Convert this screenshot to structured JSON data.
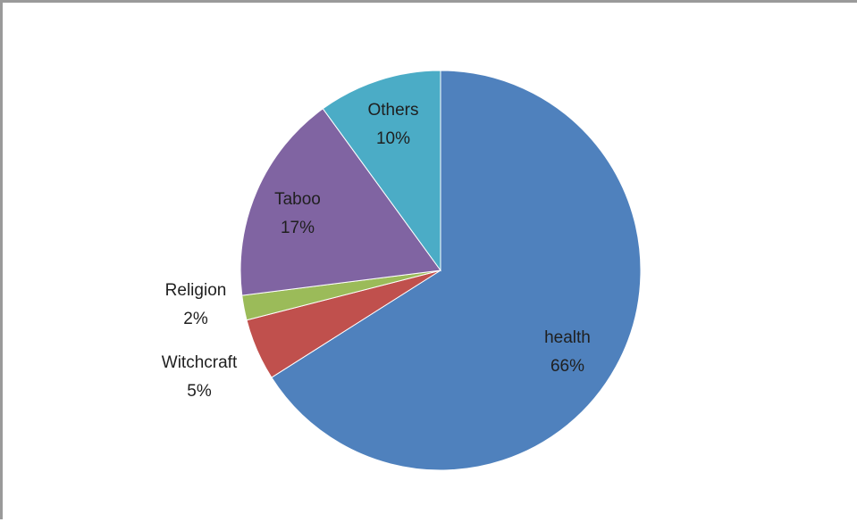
{
  "chart_data": {
    "type": "pie",
    "title": "",
    "slices": [
      {
        "label": "health",
        "value": 66,
        "percent_label": "66%",
        "color": "#4f81bd",
        "text_color": "#1f1f1f",
        "label_position": "inside"
      },
      {
        "label": "Witchcraft",
        "value": 5,
        "percent_label": "5%",
        "color": "#c0504d",
        "text_color": "#1f1f1f",
        "label_position": "outside"
      },
      {
        "label": "Religion",
        "value": 2,
        "percent_label": "2%",
        "color": "#9bbb59",
        "text_color": "#1f1f1f",
        "label_position": "outside"
      },
      {
        "label": "Taboo",
        "value": 17,
        "percent_label": "17%",
        "color": "#8064a2",
        "text_color": "#1f1f1f",
        "label_position": "inside"
      },
      {
        "label": "Others",
        "value": 10,
        "percent_label": "10%",
        "color": "#4bacc6",
        "text_color": "#1f1f1f",
        "label_position": "inside"
      }
    ],
    "start_angle": "12 o'clock",
    "direction": "clockwise",
    "legend": "none"
  }
}
